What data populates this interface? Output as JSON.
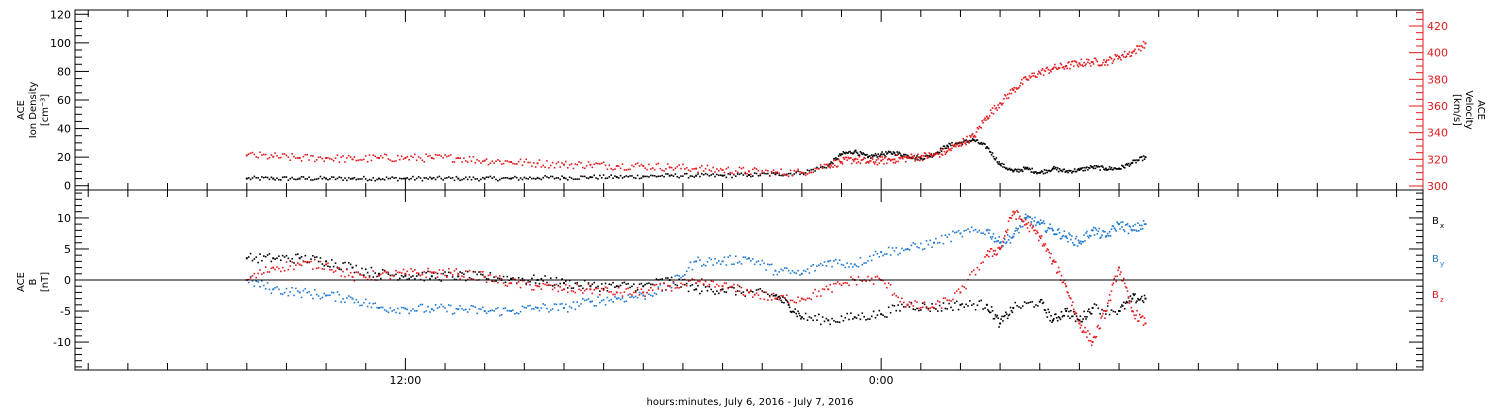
{
  "chart_data": [
    {
      "type": "scatter",
      "panel": "top",
      "ylabel_left": [
        "ACE",
        "Ion Density",
        "[cm⁻³]"
      ],
      "ylabel_right": [
        "ACE",
        "Velocity",
        "[km/s]"
      ],
      "ylim_left": [
        -3,
        123
      ],
      "ylim_right": [
        297,
        432
      ],
      "yticks_left": [
        "0",
        "20",
        "40",
        "60",
        "80",
        "100",
        "120"
      ],
      "yticks_right": [
        "300",
        "320",
        "340",
        "360",
        "380",
        "400",
        "420"
      ],
      "left_axis_color": "#000000",
      "right_axis_color": "#e41a1c",
      "series": [
        {
          "axis": "left",
          "color": "#000000",
          "points": [
            [
              0,
              5
            ],
            [
              1,
              5
            ],
            [
              2,
              5
            ],
            [
              3,
              5
            ],
            [
              4,
              5
            ],
            [
              5,
              5
            ],
            [
              6,
              5
            ],
            [
              7,
              5
            ],
            [
              8,
              5
            ],
            [
              9,
              5
            ],
            [
              10,
              5
            ],
            [
              11,
              5.5
            ],
            [
              12,
              5.5
            ],
            [
              13,
              6
            ],
            [
              14,
              6
            ],
            [
              15,
              6.5
            ],
            [
              16,
              7
            ],
            [
              17,
              7
            ],
            [
              18,
              7
            ],
            [
              19,
              7.5
            ],
            [
              20,
              8
            ],
            [
              21,
              9
            ],
            [
              22,
              14
            ],
            [
              22.5,
              22
            ],
            [
              23,
              24
            ],
            [
              23.5,
              20
            ],
            [
              24,
              22
            ],
            [
              24.5,
              23
            ],
            [
              25,
              21
            ],
            [
              25.5,
              19
            ],
            [
              26,
              22
            ],
            [
              26.5,
              28
            ],
            [
              27,
              30
            ],
            [
              27.5,
              32
            ],
            [
              28,
              27
            ],
            [
              28.5,
              15
            ],
            [
              29,
              10
            ],
            [
              29.5,
              12
            ],
            [
              30,
              9
            ],
            [
              30.5,
              12
            ],
            [
              31,
              10
            ],
            [
              31.5,
              11
            ],
            [
              32,
              13
            ],
            [
              32.5,
              12
            ],
            [
              33,
              12
            ],
            [
              33.5,
              16
            ],
            [
              34,
              20
            ]
          ]
        },
        {
          "axis": "right",
          "color": "#e41a1c",
          "points": [
            [
              0,
              323
            ],
            [
              1,
              322
            ],
            [
              2,
              321
            ],
            [
              3,
              321
            ],
            [
              4,
              320
            ],
            [
              5,
              321
            ],
            [
              6,
              321
            ],
            [
              7,
              321
            ],
            [
              8,
              321
            ],
            [
              9,
              319
            ],
            [
              10,
              318
            ],
            [
              11,
              317
            ],
            [
              12,
              316
            ],
            [
              13,
              316
            ],
            [
              14,
              315
            ],
            [
              15,
              315
            ],
            [
              16,
              314
            ],
            [
              17,
              313
            ],
            [
              18,
              312
            ],
            [
              19,
              311
            ],
            [
              20,
              310
            ],
            [
              21,
              310
            ],
            [
              22,
              316
            ],
            [
              22.5,
              318
            ],
            [
              23,
              320
            ],
            [
              23.5,
              318
            ],
            [
              24,
              319
            ],
            [
              24.5,
              320
            ],
            [
              25,
              321
            ],
            [
              25.5,
              322
            ],
            [
              26,
              323
            ],
            [
              26.5,
              326
            ],
            [
              27,
              332
            ],
            [
              27.5,
              337
            ],
            [
              28,
              352
            ],
            [
              28.5,
              362
            ],
            [
              29,
              372
            ],
            [
              29.5,
              380
            ],
            [
              30,
              385
            ],
            [
              30.5,
              388
            ],
            [
              31,
              390
            ],
            [
              31.5,
              392
            ],
            [
              32,
              393
            ],
            [
              32.5,
              393
            ],
            [
              33,
              397
            ],
            [
              33.5,
              400
            ],
            [
              34,
              407
            ]
          ]
        }
      ]
    },
    {
      "type": "scatter",
      "panel": "bottom",
      "ylabel": [
        "ACE",
        "B",
        "[nT]"
      ],
      "ylim": [
        -14.5,
        14.5
      ],
      "yticks": [
        "-10",
        "-5",
        "0",
        "5",
        "10"
      ],
      "series": [
        {
          "name": "Bx",
          "color": "#000000",
          "points": [
            [
              0,
              3.5
            ],
            [
              1,
              3.5
            ],
            [
              2,
              3.5
            ],
            [
              3,
              3
            ],
            [
              4,
              2
            ],
            [
              5,
              1
            ],
            [
              6,
              0.7
            ],
            [
              7,
              0.6
            ],
            [
              8,
              0.6
            ],
            [
              9,
              0.5
            ],
            [
              10,
              0.2
            ],
            [
              11,
              0
            ],
            [
              12,
              -0.5
            ],
            [
              13,
              -1
            ],
            [
              14,
              -1
            ],
            [
              15,
              -1
            ],
            [
              16,
              0
            ],
            [
              17,
              -1.5
            ],
            [
              18,
              -1.5
            ],
            [
              19,
              -2
            ],
            [
              20,
              -2.5
            ],
            [
              20.5,
              -4
            ],
            [
              21,
              -6
            ],
            [
              22,
              -6.5
            ],
            [
              23,
              -6
            ],
            [
              24,
              -5.5
            ],
            [
              25,
              -4
            ],
            [
              26,
              -4.5
            ],
            [
              27,
              -4
            ],
            [
              28,
              -4
            ],
            [
              28.5,
              -7
            ],
            [
              29,
              -4.5
            ],
            [
              30,
              -3.5
            ],
            [
              30.5,
              -6.5
            ],
            [
              31,
              -5
            ],
            [
              31.5,
              -6.5
            ],
            [
              32,
              -4.5
            ],
            [
              33,
              -5
            ],
            [
              33.5,
              -3
            ],
            [
              34,
              -3
            ]
          ]
        },
        {
          "name": "By",
          "color": "#1f78d1",
          "points": [
            [
              0,
              0
            ],
            [
              1,
              -1.5
            ],
            [
              2,
              -2
            ],
            [
              3,
              -2.5
            ],
            [
              4,
              -3
            ],
            [
              5,
              -4.5
            ],
            [
              6,
              -4.6
            ],
            [
              7,
              -4.7
            ],
            [
              8,
              -4.7
            ],
            [
              9,
              -5
            ],
            [
              10,
              -5
            ],
            [
              11,
              -4.5
            ],
            [
              12,
              -4.5
            ],
            [
              13,
              -3.5
            ],
            [
              14,
              -3
            ],
            [
              15,
              -2.5
            ],
            [
              16,
              -1
            ],
            [
              17,
              3
            ],
            [
              18,
              3
            ],
            [
              19,
              3.5
            ],
            [
              20,
              1.5
            ],
            [
              21,
              1
            ],
            [
              22,
              3
            ],
            [
              23,
              2.5
            ],
            [
              24,
              4.5
            ],
            [
              25,
              5
            ],
            [
              26,
              6
            ],
            [
              27,
              7.5
            ],
            [
              28,
              8
            ],
            [
              28.5,
              6
            ],
            [
              29,
              7
            ],
            [
              29.5,
              10
            ],
            [
              30,
              9
            ],
            [
              30.5,
              8
            ],
            [
              31,
              7
            ],
            [
              31.5,
              6
            ],
            [
              32,
              8
            ],
            [
              32.5,
              7
            ],
            [
              33,
              9
            ],
            [
              33.5,
              8
            ],
            [
              34,
              9
            ]
          ]
        },
        {
          "name": "Bz",
          "color": "#e41a1c",
          "points": [
            [
              0,
              0
            ],
            [
              1,
              2
            ],
            [
              2,
              2.5
            ],
            [
              3,
              2.5
            ],
            [
              4,
              0.5
            ],
            [
              5,
              0.7
            ],
            [
              6,
              1
            ],
            [
              7,
              1.2
            ],
            [
              8,
              1
            ],
            [
              9,
              0.5
            ],
            [
              10,
              -0.5
            ],
            [
              11,
              -1
            ],
            [
              12,
              -1.5
            ],
            [
              13,
              -1.5
            ],
            [
              14,
              -2
            ],
            [
              15,
              -2
            ],
            [
              16,
              -1
            ],
            [
              17,
              -0.5
            ],
            [
              18,
              -1
            ],
            [
              19,
              -2
            ],
            [
              20,
              -3
            ],
            [
              21,
              -3
            ],
            [
              22,
              -1.5
            ],
            [
              23,
              0
            ],
            [
              24,
              0
            ],
            [
              25,
              -4
            ],
            [
              26,
              -4.5
            ],
            [
              27,
              -2
            ],
            [
              28,
              4
            ],
            [
              28.5,
              5
            ],
            [
              29,
              11
            ],
            [
              29.5,
              9
            ],
            [
              30,
              7
            ],
            [
              30.5,
              3
            ],
            [
              31,
              -1
            ],
            [
              31.5,
              -7
            ],
            [
              32,
              -10
            ],
            [
              32.5,
              -5
            ],
            [
              33,
              2
            ],
            [
              33.5,
              -5
            ],
            [
              34,
              -7
            ]
          ]
        }
      ],
      "legend": [
        {
          "label": "B",
          "sub": "x",
          "color": "#000000"
        },
        {
          "label": "B",
          "sub": "y",
          "color": "#1f78d1"
        },
        {
          "label": "B",
          "sub": "z",
          "color": "#e41a1c"
        }
      ]
    }
  ],
  "xaxis": {
    "xlim": [
      -6.5,
      44.5
    ],
    "ticks": [
      {
        "value": 6,
        "label": "12:00"
      },
      {
        "value": 24,
        "label": "0:00"
      }
    ],
    "minor_step": 1.5
  },
  "xlabel": "hours:minutes, July  6, 2016 - July  7, 2016"
}
